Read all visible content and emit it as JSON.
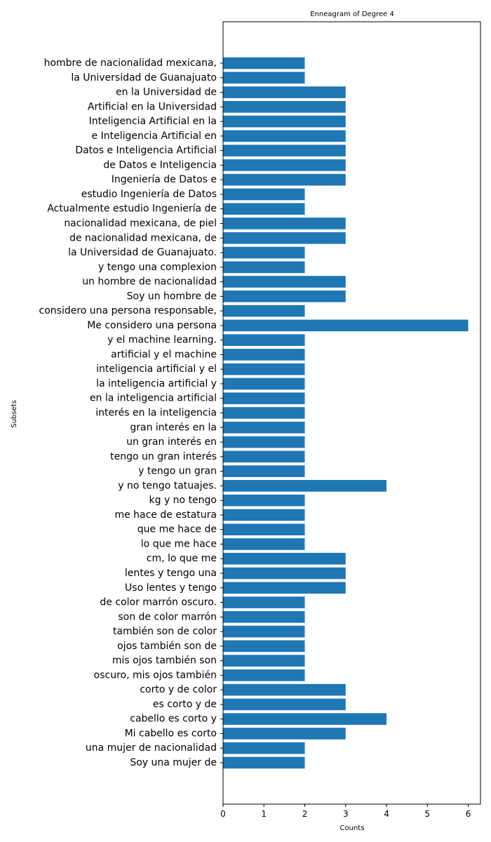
{
  "chart_data": {
    "type": "bar",
    "orientation": "horizontal",
    "title": "Enneagram of Degree 4",
    "xlabel": "Counts",
    "ylabel": "Subsets",
    "xlim": [
      0,
      6.3
    ],
    "xticks": [
      0,
      1,
      2,
      3,
      4,
      5,
      6
    ],
    "grid": false,
    "bar_color": "#1f77b4",
    "categories": [
      "Soy una mujer de",
      "una mujer de nacionalidad",
      "Mi cabello es corto",
      "cabello es corto y",
      "es corto y de",
      "corto y de color",
      "oscuro, mis ojos también",
      "mis ojos también son",
      "ojos también son de",
      "también son de color",
      "son de color marrón",
      "de color marrón oscuro.",
      "Uso lentes y tengo",
      "lentes y tengo una",
      "cm, lo que me",
      "lo que me hace",
      "que me hace de",
      "me hace de estatura",
      "kg y no tengo",
      "y no tengo tatuajes.",
      "y tengo un gran",
      "tengo un gran interés",
      "un gran interés en",
      "gran interés en la",
      "interés en la inteligencia",
      "en la inteligencia artificial",
      "la inteligencia artificial y",
      "inteligencia artificial y el",
      "artificial y el machine",
      "y el machine learning.",
      "Me considero una persona",
      "considero una persona responsable,",
      "Soy un hombre de",
      "un hombre de nacionalidad",
      "y tengo una complexion",
      "la Universidad de Guanajuato.",
      "de nacionalidad mexicana, de",
      "nacionalidad mexicana, de piel",
      "Actualmente estudio Ingeniería de",
      "estudio Ingeniería de Datos",
      "Ingeniería de Datos e",
      "de Datos e Inteligencia",
      "Datos e Inteligencia Artificial",
      "e Inteligencia Artificial en",
      "Inteligencia Artificial en la",
      "Artificial en la Universidad",
      "en la Universidad de",
      "la Universidad de Guanajuato",
      "hombre de nacionalidad mexicana,"
    ],
    "values": [
      2,
      2,
      3,
      4,
      3,
      3,
      2,
      2,
      2,
      2,
      2,
      2,
      3,
      3,
      3,
      2,
      2,
      2,
      2,
      4,
      2,
      2,
      2,
      2,
      2,
      2,
      2,
      2,
      2,
      2,
      6,
      2,
      3,
      3,
      2,
      2,
      3,
      3,
      2,
      2,
      3,
      3,
      3,
      3,
      3,
      3,
      3,
      2,
      2
    ]
  }
}
